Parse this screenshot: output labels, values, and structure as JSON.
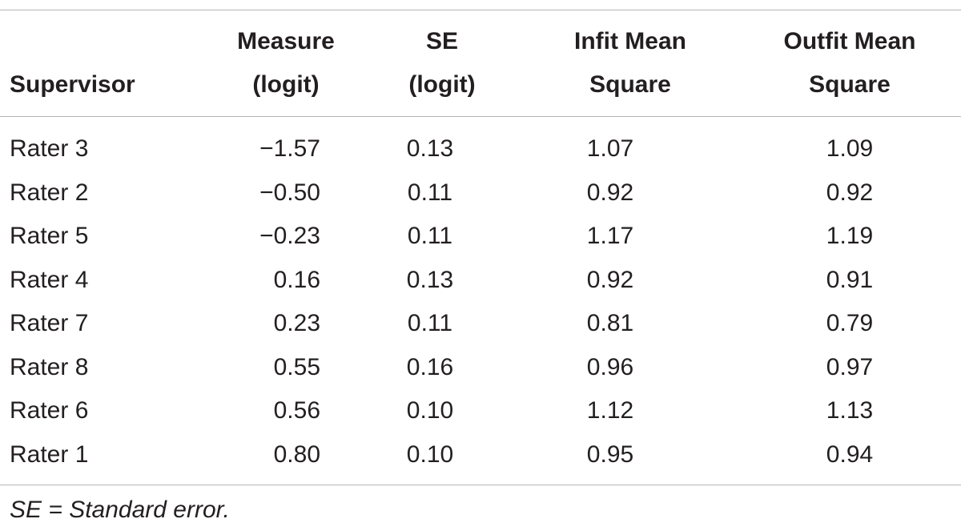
{
  "table": {
    "headers": [
      {
        "lines": [
          "Supervisor"
        ]
      },
      {
        "lines": [
          "Measure",
          "(logit)"
        ]
      },
      {
        "lines": [
          "SE",
          "(logit)"
        ]
      },
      {
        "lines": [
          "Infit Mean",
          "Square"
        ]
      },
      {
        "lines": [
          "Outfit Mean",
          "Square"
        ]
      }
    ],
    "rows": [
      [
        "Rater 3",
        "−1.57",
        "0.13",
        "1.07",
        "1.09"
      ],
      [
        "Rater 2",
        "−0.50",
        "0.11",
        "0.92",
        "0.92"
      ],
      [
        "Rater 5",
        "−0.23",
        "0.11",
        "1.17",
        "1.19"
      ],
      [
        "Rater 4",
        "0.16",
        "0.13",
        "0.92",
        "0.91"
      ],
      [
        "Rater 7",
        "0.23",
        "0.11",
        "0.81",
        "0.79"
      ],
      [
        "Rater 8",
        "0.55",
        "0.16",
        "0.96",
        "0.97"
      ],
      [
        "Rater 6",
        "0.56",
        "0.10",
        "1.12",
        "1.13"
      ],
      [
        "Rater 1",
        "0.80",
        "0.10",
        "0.95",
        "0.94"
      ]
    ]
  },
  "footnote": "SE = Standard error."
}
